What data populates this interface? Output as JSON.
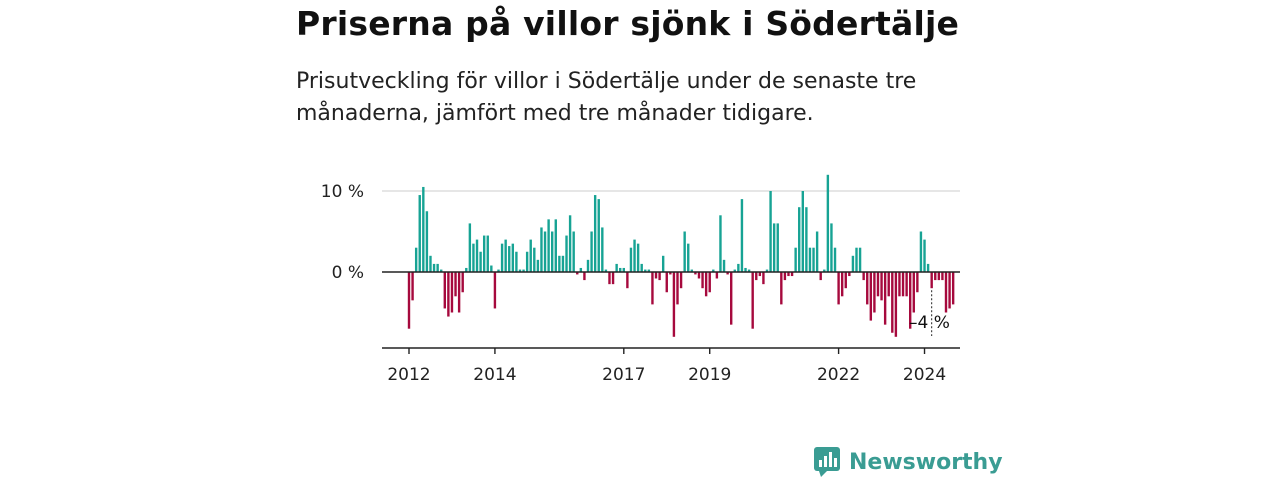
{
  "title": "Priserna på villor sjönk i Södertälje",
  "subtitle": "Prisutveckling för villor i Södertälje under de senaste tre månaderna, jämfört med tre månader tidigare.",
  "brand": {
    "name": "Newsworthy",
    "color": "#3a9c93",
    "icon": "newsworthy-logo-icon"
  },
  "colors": {
    "positive": "#17a394",
    "negative": "#a6093d",
    "axis": "#222222",
    "grid": "#dddddd"
  },
  "chart_data": {
    "type": "bar",
    "title": "Priserna på villor sjönk i Södertälje",
    "ylabel": "",
    "xlabel": "",
    "unit": "%",
    "ylim": [
      -9,
      12
    ],
    "y_ticks": [
      {
        "value": 0,
        "label": "0 %"
      },
      {
        "value": 10,
        "label": "10 %"
      }
    ],
    "x_ticks": [
      {
        "label": "2012",
        "index": 0
      },
      {
        "label": "2014",
        "index": 24
      },
      {
        "label": "2017",
        "index": 60
      },
      {
        "label": "2019",
        "index": 84
      },
      {
        "label": "2022",
        "index": 120
      },
      {
        "label": "2024",
        "index": 144
      }
    ],
    "annotation": {
      "text": "–4 %",
      "index": 146
    },
    "grid": "horizontal",
    "series": [
      {
        "values": [
          -7,
          -3.5,
          3,
          9.5,
          10.5,
          7.5,
          2,
          1,
          1,
          0.3,
          -4.5,
          -5.5,
          -5,
          -3,
          -5,
          -2.5,
          0.5,
          6,
          3.5,
          4,
          2.5,
          4.5,
          4.5,
          0.8,
          -4.5,
          0.3,
          3.5,
          4,
          3.2,
          3.5,
          2.5,
          0.3,
          0.3,
          2.5,
          4,
          3,
          1.5,
          5.5,
          5,
          6.5,
          5,
          6.5,
          2,
          2,
          4.5,
          7,
          5,
          -0.3,
          0.5,
          -1,
          1.5,
          5,
          9.5,
          9,
          5.5,
          0.3,
          -1.5,
          -1.5,
          1,
          0.5,
          0.5,
          -2,
          3,
          4,
          3.5,
          1,
          0.3,
          0.3,
          -4,
          -0.8,
          -1,
          2,
          -2.5,
          -0.3,
          -8,
          -4,
          -2,
          5,
          3.5,
          0.3,
          -0.3,
          -0.8,
          -2,
          -3,
          -2.5,
          0.3,
          -0.8,
          7,
          1.5,
          -0.3,
          -6.5,
          0.3,
          1,
          9,
          0.5,
          0.3,
          -7,
          -1,
          -0.5,
          -1.5,
          0.3,
          10,
          6,
          6,
          -4,
          -1,
          -0.5,
          -0.5,
          3,
          8,
          10,
          8,
          3,
          3,
          5,
          -1,
          0.3,
          12,
          6,
          3,
          -4,
          -3,
          -2,
          -0.5,
          2,
          3,
          3,
          -1,
          -4,
          -6,
          -5,
          -3,
          -3.5,
          -6.5,
          -3,
          -7.5,
          -8,
          -3,
          -3,
          -3,
          -7,
          -5,
          -2.5,
          5,
          4,
          1,
          -2,
          -1,
          -1,
          -1,
          -5,
          -4.5,
          -4
        ]
      }
    ]
  }
}
